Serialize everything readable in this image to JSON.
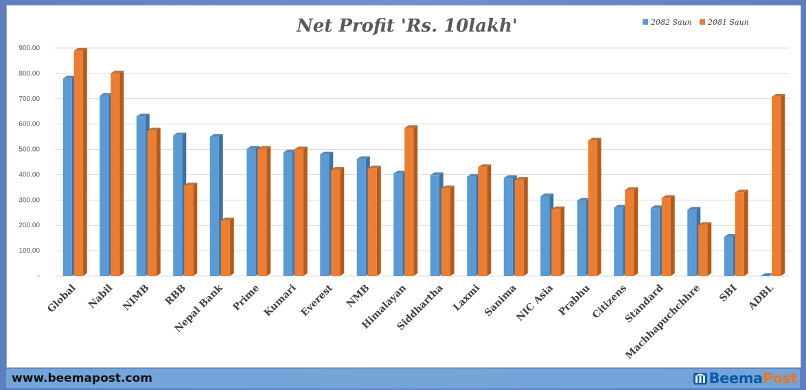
{
  "colors": {
    "series_2082": "#5b9bd5",
    "series_2082_side": "#3d72a6",
    "series_2081": "#ed7d31",
    "series_2081_side": "#b35b1c",
    "grid": "#d9d9d9",
    "footer": "#74a5d8"
  },
  "chart_data": {
    "type": "bar",
    "title": "Net Profit  'Rs. 10lakh'",
    "xlabel": "",
    "ylabel": "",
    "ylim": [
      0,
      900
    ],
    "yticks": [
      "-",
      "100.00",
      "200.00",
      "300.00",
      "400.00",
      "500.00",
      "600.00",
      "700.00",
      "800.00",
      "900.00"
    ],
    "grid": true,
    "legend_position": "top-right",
    "categories": [
      "Global",
      "Nabil",
      "NIMB",
      "RBB",
      "Nepal Bank",
      "Prime",
      "Kumari",
      "Everest",
      "NMB",
      "Himalayan",
      "Siddhartha",
      "Laxmi",
      "Sanima",
      "NIC Asia",
      "Prabhu",
      "Citizens",
      "Standard",
      "Machhapuchchhre",
      "SBI",
      "ADBL"
    ],
    "series": [
      {
        "name": "2082 Saun",
        "values": [
          780,
          712,
          630,
          555,
          550,
          502,
          488,
          480,
          462,
          405,
          398,
          392,
          387,
          315,
          298,
          270,
          268,
          262,
          155,
          0
        ]
      },
      {
        "name": "2081 Saun",
        "values": [
          890,
          800,
          575,
          358,
          220,
          502,
          500,
          420,
          425,
          585,
          346,
          430,
          380,
          264,
          535,
          340,
          308,
          202,
          330,
          708
        ]
      }
    ]
  },
  "footer": {
    "url": "www.beemapost.com",
    "logo_beema": "Beema",
    "logo_post": "Post",
    "logo_icon": "building-icon"
  }
}
